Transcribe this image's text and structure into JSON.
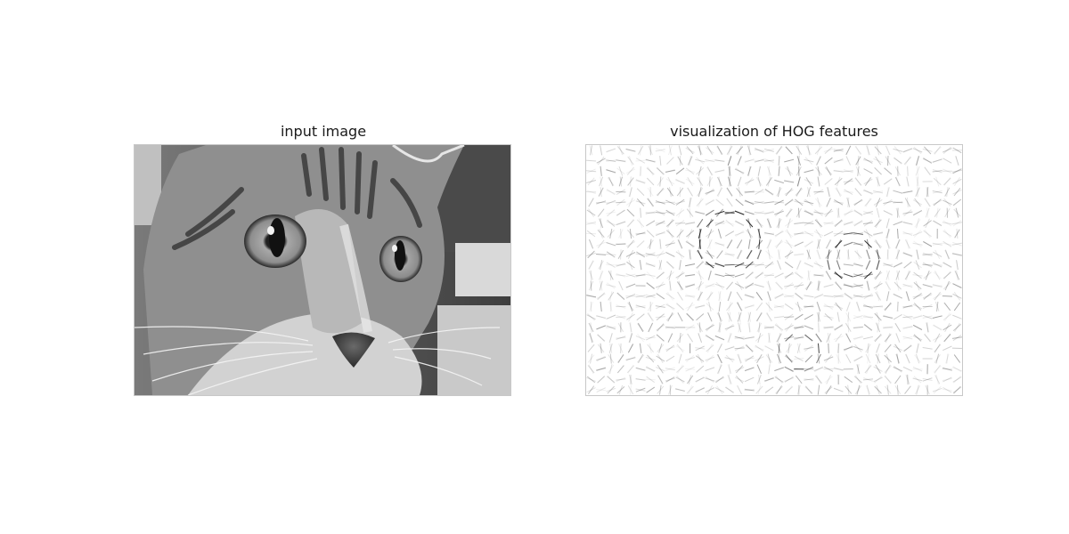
{
  "panels": [
    {
      "title": "input image"
    },
    {
      "title": "visualization of HOG features"
    }
  ],
  "image": {
    "subject": "grayscale close-up photo of a tabby cat face",
    "colormap": "gray"
  },
  "hog": {
    "colormap": "gray_r",
    "cell_grid": [
      38,
      24
    ]
  }
}
